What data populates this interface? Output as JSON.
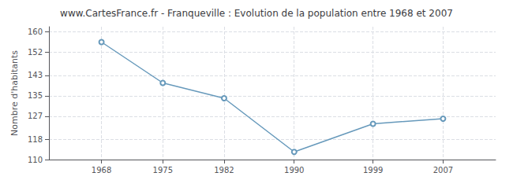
{
  "chart_data": {
    "type": "line",
    "title": "www.CartesFrance.fr - Franqueville : Evolution de la population entre 1968 et 2007",
    "ylabel": "Nombre d'habitants",
    "x": [
      1968,
      1975,
      1982,
      1990,
      1999,
      2007
    ],
    "values": [
      156,
      140,
      134,
      113,
      124,
      126
    ],
    "color": "#6699bb",
    "marker": "circle",
    "xlim": [
      1962,
      2013
    ],
    "ylim": [
      110,
      162
    ],
    "xticks": [
      1968,
      1975,
      1982,
      1990,
      1999,
      2007
    ],
    "yticks": [
      110,
      118,
      127,
      135,
      143,
      152,
      160
    ],
    "grid": true
  }
}
